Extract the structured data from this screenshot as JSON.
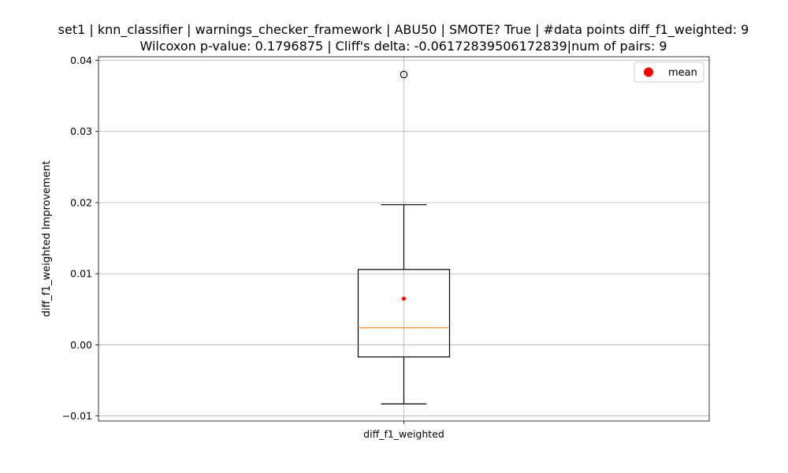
{
  "chart_data": {
    "type": "box",
    "title_line1": "set1 | knn_classifier | warnings_checker_framework | ABU50 | SMOTE? True | #data points diff_f1_weighted: 9",
    "title_line2": "Wilcoxon p-value: 0.1796875 | Cliff's delta: -0.06172839506172839|num of pairs: 9",
    "xlabel": "",
    "ylabel": "diff_f1_weighted Improvement",
    "categories": [
      "diff_f1_weighted"
    ],
    "ylim": [
      -0.0107,
      0.0405
    ],
    "yticks": [
      -0.01,
      0.0,
      0.01,
      0.02,
      0.03,
      0.04
    ],
    "ytick_labels": [
      "−0.01",
      "0.00",
      "0.01",
      "0.02",
      "0.03",
      "0.04"
    ],
    "grid": true,
    "box": {
      "whisker_low": -0.0083,
      "q1": -0.0017,
      "median": 0.0024,
      "q3": 0.0106,
      "whisker_high": 0.0197,
      "mean": 0.0065,
      "outliers": [
        0.038
      ]
    },
    "legend": {
      "placement": "top-right",
      "entries": [
        {
          "label": "mean",
          "color": "#ff0000"
        }
      ]
    },
    "colors": {
      "box": "#000000",
      "median": "#ff7f0e",
      "mean": "#ff0000",
      "grid": "#b0b0b0"
    }
  }
}
